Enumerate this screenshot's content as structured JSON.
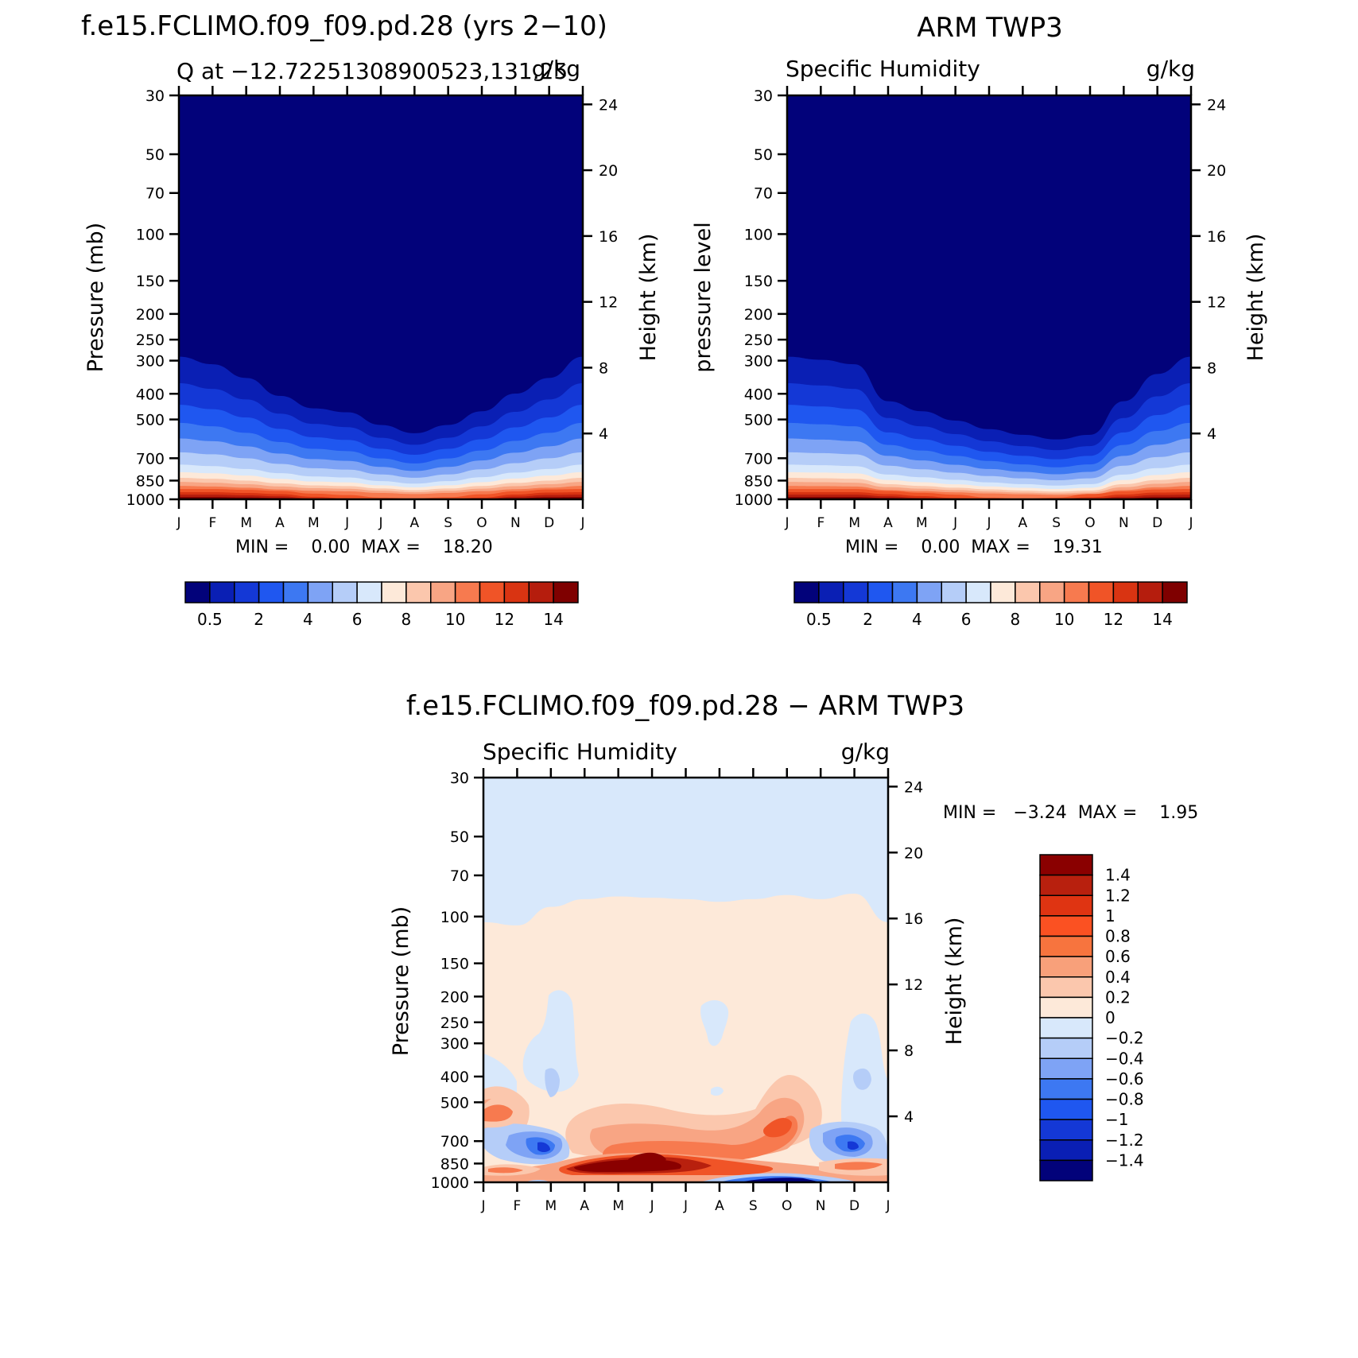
{
  "chart_data": [
    {
      "type": "contour",
      "title": "f.e15.FCLIMO.f09_f09.pd.28 (yrs 2−10)",
      "subtitle_left": "Q at −12.72251308900523,131.25",
      "subtitle_right": "g/kg",
      "ylabel": "Pressure (mb)",
      "ylabel_right": "Height (km)",
      "min_max": "MIN =    0.00  MAX =    18.20",
      "colorbar_labels": [
        "0.5",
        "2",
        "4",
        "6",
        "8",
        "10",
        "12",
        "14"
      ],
      "colorbar_colors": [
        "#02027a",
        "#0a1fb4",
        "#1438d6",
        "#1f57f0",
        "#3d78f2",
        "#7ea3f5",
        "#b5cdf8",
        "#d8e8fb",
        "#fde9d9",
        "#fbc7ad",
        "#f8a584",
        "#f77a4f",
        "#f05427",
        "#d93412",
        "#b51d0d",
        "#7f0000"
      ],
      "boundary_pressures": [
        290,
        365,
        440,
        515,
        590,
        665,
        740,
        790,
        830,
        860,
        890,
        915,
        940,
        960,
        980
      ],
      "months": [
        "J",
        "F",
        "M",
        "A",
        "M",
        "J",
        "J",
        "A",
        "S",
        "O",
        "N",
        "D",
        "J"
      ],
      "seasonal_shift": [
        0.0,
        0.05,
        0.15,
        0.3,
        0.42,
        0.46,
        0.6,
        0.7,
        0.6,
        0.45,
        0.28,
        0.15,
        0.0
      ],
      "shift_scale": 1.0,
      "shift_clamp": 0.9,
      "surface_shift": [
        0.0,
        0.0,
        0.2,
        0.5,
        1.2,
        1.6,
        2.3,
        2.5,
        2.2,
        1.4,
        0.6,
        0.1,
        0.0
      ]
    },
    {
      "type": "contour",
      "title": "ARM TWP3",
      "subtitle_left": "Specific Humidity",
      "subtitle_right": "g/kg",
      "ylabel": "pressure level",
      "ylabel_right": "Height (km)",
      "min_max": "MIN =    0.00  MAX =    19.31",
      "colorbar_labels": [
        "0.5",
        "2",
        "4",
        "6",
        "8",
        "10",
        "12",
        "14"
      ],
      "colorbar_colors": [
        "#02027a",
        "#0a1fb4",
        "#1438d6",
        "#1f57f0",
        "#3d78f2",
        "#7ea3f5",
        "#b5cdf8",
        "#d8e8fb",
        "#fde9d9",
        "#fbc7ad",
        "#f8a584",
        "#f77a4f",
        "#f05427",
        "#d93412",
        "#b51d0d",
        "#7f0000"
      ],
      "boundary_pressures": [
        290,
        365,
        440,
        515,
        590,
        665,
        740,
        790,
        830,
        860,
        890,
        915,
        940,
        960,
        980
      ],
      "months": [
        "J",
        "F",
        "M",
        "A",
        "M",
        "J",
        "J",
        "A",
        "S",
        "O",
        "N",
        "D",
        "J"
      ],
      "seasonal_shift": [
        0.0,
        0.02,
        0.05,
        0.35,
        0.45,
        0.55,
        0.65,
        0.72,
        0.78,
        0.72,
        0.35,
        0.12,
        0.0
      ],
      "shift_scale": 1.0,
      "shift_clamp": 0.9,
      "surface_shift": [
        0.0,
        0.0,
        0.0,
        0.5,
        1.0,
        1.5,
        2.3,
        2.6,
        2.3,
        1.3,
        0.6,
        0.1,
        0.0
      ]
    },
    {
      "type": "contour-difference",
      "title": "f.e15.FCLIMO.f09_f09.pd.28 − ARM TWP3",
      "subtitle_left": "Specific Humidity",
      "subtitle_right": "g/kg",
      "ylabel": "Pressure (mb)",
      "ylabel_right": "Height (km)",
      "min_max": "MIN =   −3.24  MAX =    1.95",
      "colorbar_labels": [
        "1.4",
        "1.2",
        "1",
        "0.8",
        "0.6",
        "0.4",
        "0.2",
        "0",
        "−0.2",
        "−0.4",
        "−0.6",
        "−0.8",
        "−1",
        "−1.2",
        "−1.4"
      ],
      "colorbar_colors": [
        "#8a0000",
        "#b8200e",
        "#df3412",
        "#fb5122",
        "#f7743e",
        "#f8a07a",
        "#fbc7ad",
        "#fde9d9",
        "#d8e8fb",
        "#b5cdf8",
        "#7ea3f5",
        "#3d78f2",
        "#1f57f0",
        "#1438d6",
        "#0a1fb4",
        "#02027a"
      ],
      "months": [
        "J",
        "F",
        "M",
        "A",
        "M",
        "J",
        "J",
        "A",
        "S",
        "O",
        "N",
        "D",
        "J"
      ],
      "upper_boundary_pressures": [
        105,
        108,
        92,
        86,
        84,
        85,
        86,
        88,
        86,
        83,
        86,
        82,
        105
      ]
    }
  ],
  "axes": {
    "pressure_ticks": [
      "30",
      "50",
      "70",
      "100",
      "150",
      "200",
      "250",
      "300",
      "400",
      "500",
      "700",
      "850",
      "1000"
    ],
    "height_ticks": [
      "24",
      "20",
      "16",
      "12",
      "8",
      "4"
    ]
  }
}
